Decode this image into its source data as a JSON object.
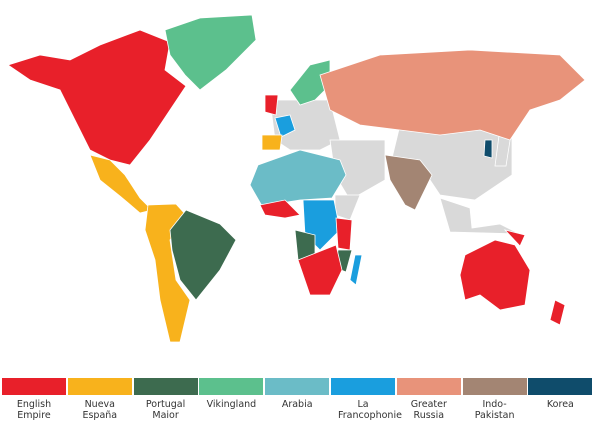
{
  "legend": {
    "items": [
      {
        "label": "English Empire",
        "color": "#e8202a"
      },
      {
        "label": "Nueva España",
        "color": "#f8b21c"
      },
      {
        "label": "Portugal Maior",
        "color": "#3d6b4f"
      },
      {
        "label": "Vikingland",
        "color": "#5cc08d"
      },
      {
        "label": "Arabia",
        "color": "#6bbcc7"
      },
      {
        "label": "La Francophonie",
        "color": "#1a9ede"
      },
      {
        "label": "Greater Russia",
        "color": "#e8937a"
      },
      {
        "label": "Indo-Pakistan",
        "color": "#a38573"
      },
      {
        "label": "Korea",
        "color": "#0f4c6b"
      }
    ]
  }
}
